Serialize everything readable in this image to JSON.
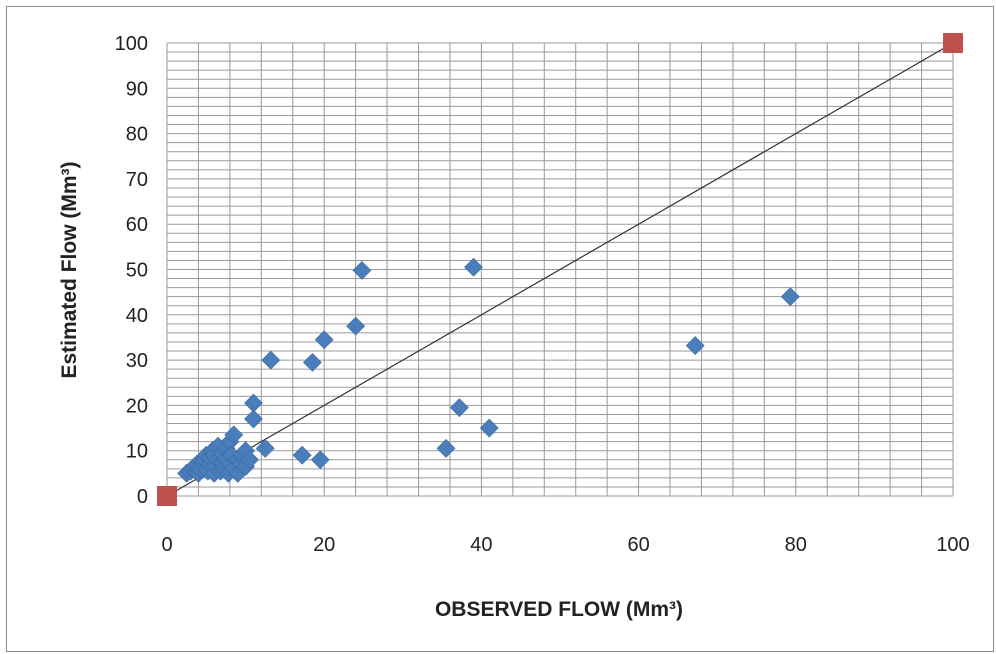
{
  "chart_data": {
    "type": "scatter",
    "xlabel": "OBSERVED FLOW (Mm³)",
    "ylabel": "Estimated Flow (Mm³)",
    "xlim": [
      0,
      100
    ],
    "ylim": [
      0,
      100
    ],
    "x_ticks": [
      "0",
      "20",
      "40",
      "60",
      "80",
      "100"
    ],
    "y_ticks": [
      "0",
      "10",
      "20",
      "30",
      "40",
      "50",
      "60",
      "70",
      "80",
      "90",
      "100"
    ],
    "grid": true,
    "series": [
      {
        "marker": "diamond",
        "color": "#4a7ebb",
        "points": [
          [
            2.5,
            5
          ],
          [
            3,
            5.5
          ],
          [
            3.2,
            6
          ],
          [
            3.5,
            6.5
          ],
          [
            3.8,
            7
          ],
          [
            4,
            5
          ],
          [
            4.2,
            6
          ],
          [
            4.5,
            7.5
          ],
          [
            4.8,
            8
          ],
          [
            5,
            6
          ],
          [
            5,
            9
          ],
          [
            5.2,
            5.5
          ],
          [
            5.5,
            7
          ],
          [
            5.5,
            8.5
          ],
          [
            5.8,
            10
          ],
          [
            6,
            5
          ],
          [
            6,
            9
          ],
          [
            6.2,
            6.5
          ],
          [
            6.5,
            8
          ],
          [
            6.5,
            11
          ],
          [
            6.8,
            5.5
          ],
          [
            7,
            7.5
          ],
          [
            7,
            9.5
          ],
          [
            7.2,
            6
          ],
          [
            7.5,
            10.5
          ],
          [
            7.5,
            8
          ],
          [
            7.8,
            5
          ],
          [
            8,
            12
          ],
          [
            8,
            7
          ],
          [
            8.2,
            9
          ],
          [
            8.5,
            13.5
          ],
          [
            8.5,
            6
          ],
          [
            9,
            8
          ],
          [
            9,
            5
          ],
          [
            9.5,
            7
          ],
          [
            9.5,
            9
          ],
          [
            10,
            6.5
          ],
          [
            10,
            10
          ],
          [
            10.5,
            8
          ],
          [
            11,
            20.5
          ],
          [
            11,
            17
          ],
          [
            12.5,
            10.5
          ],
          [
            13.2,
            30
          ],
          [
            17.2,
            9
          ],
          [
            18.5,
            29.5
          ],
          [
            19.5,
            8
          ],
          [
            20,
            34.5
          ],
          [
            24,
            37.5
          ],
          [
            24.8,
            49.8
          ],
          [
            35.5,
            10.5
          ],
          [
            37.2,
            19.5
          ],
          [
            39,
            50.5
          ],
          [
            41,
            15
          ],
          [
            67.2,
            33.2
          ],
          [
            79.3,
            44
          ]
        ]
      },
      {
        "marker": "square",
        "color": "#c0504d",
        "points": [
          [
            0,
            0
          ],
          [
            100,
            100
          ]
        ]
      }
    ],
    "reference_line": [
      [
        0,
        0
      ],
      [
        100,
        100
      ]
    ]
  }
}
